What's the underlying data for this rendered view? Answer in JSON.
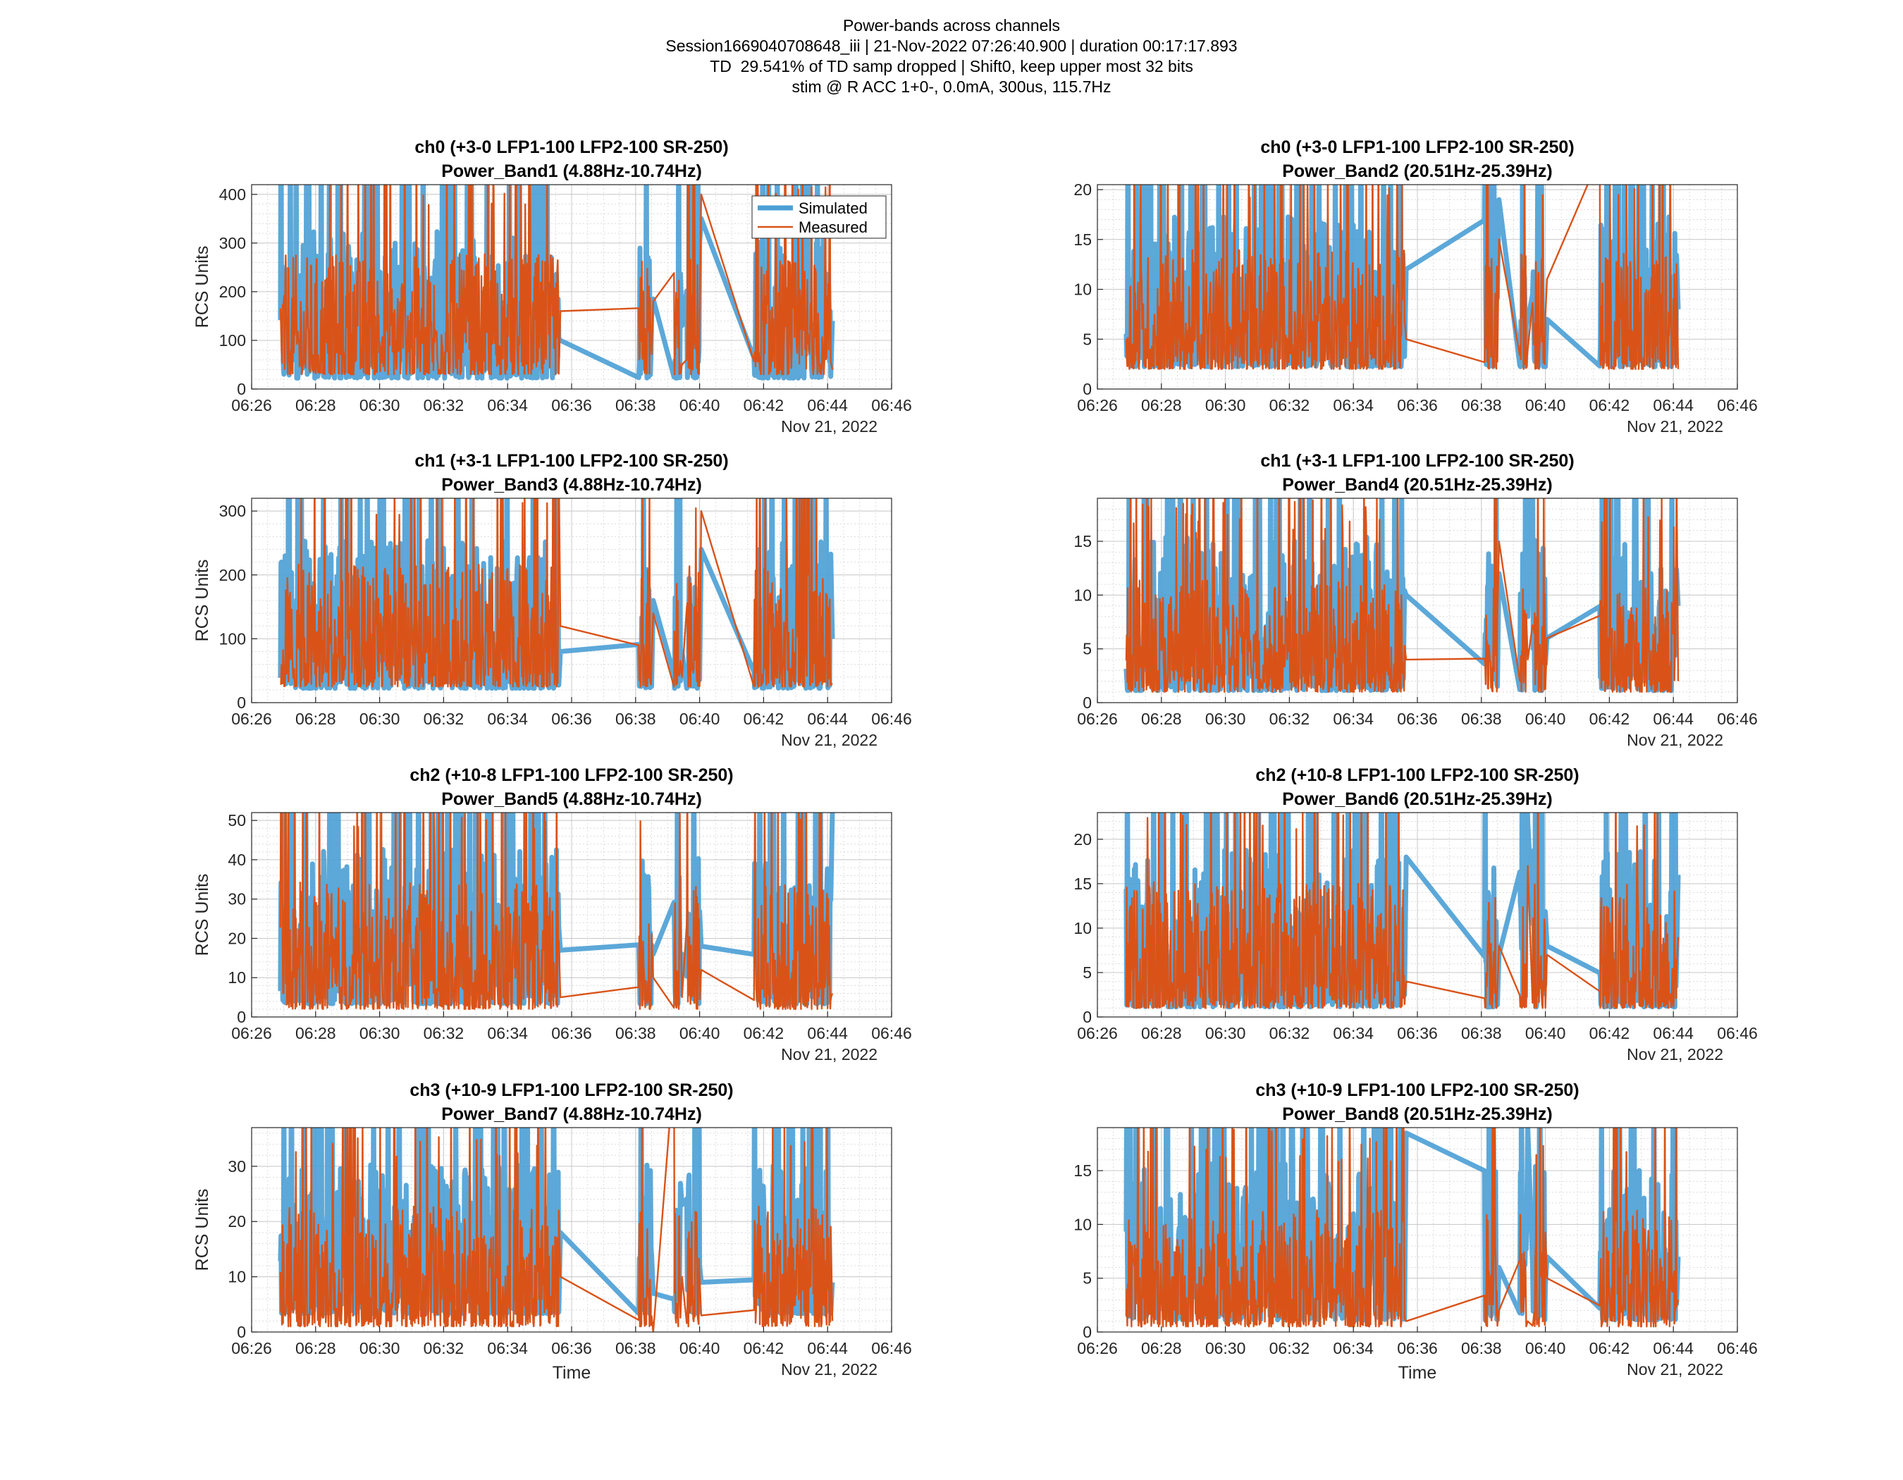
{
  "suptitle": [
    "Power-bands across channels",
    "Session1669040708648_iii | 21-Nov-2022 07:26:40.900 | duration 00:17:17.893",
    "TD  29.541% of TD samp dropped | Shift0, keep upper most 32 bits",
    "stim @ R ACC 1+0-, 0.0mA, 300us, 115.7Hz"
  ],
  "colors": {
    "simulated": "#4a9fd5",
    "measured": "#d95319",
    "grid": "#dcdcdc",
    "axis": "#262626"
  },
  "axes_common": {
    "xticks": [
      "06:26",
      "06:28",
      "06:30",
      "06:32",
      "06:34",
      "06:36",
      "06:38",
      "06:40",
      "06:42",
      "06:44",
      "06:46"
    ],
    "xlim": [
      "06:26",
      "06:46"
    ],
    "date_label": "Nov 21, 2022",
    "ylabel": "RCS Units",
    "xlabel": "Time",
    "legend": [
      "Simulated",
      "Measured"
    ]
  },
  "chart_data": [
    {
      "type": "line",
      "title": [
        "ch0 (+3-0 LFP1-100 LFP2-100 SR-250)",
        "Power_Band1 (4.88Hz-10.74Hz)"
      ],
      "ylim": [
        0,
        420
      ],
      "yticks": [
        0,
        100,
        200,
        300,
        400
      ],
      "series": [
        {
          "name": "Simulated",
          "dense_range": [
            20,
            380
          ],
          "segments": [
            [
              0,
              0
            ],
            [
              9.7,
              100
            ],
            [
              12.3,
              185
            ],
            [
              13.3,
              130
            ],
            [
              14.0,
              350
            ],
            [
              15.8,
              140
            ]
          ]
        },
        {
          "name": "Measured",
          "dense_range": [
            30,
            360
          ],
          "segments": [
            [
              0,
              0
            ],
            [
              9.7,
              160
            ],
            [
              12.3,
              180
            ],
            [
              13.3,
              50
            ],
            [
              14.0,
              400
            ],
            [
              14.9,
              40
            ],
            [
              15.6,
              80
            ]
          ]
        }
      ]
    },
    {
      "type": "line",
      "title": [
        "ch0 (+3-0 LFP1-100 LFP2-100 SR-250)",
        "Power_Band2 (20.51Hz-25.39Hz)"
      ],
      "ylim": [
        0,
        20.5
      ],
      "yticks": [
        0,
        5,
        10,
        15,
        20
      ],
      "series": [
        {
          "name": "Simulated",
          "dense_range": [
            2,
            20
          ],
          "segments": [
            [
              0,
              0
            ],
            [
              9.7,
              12
            ],
            [
              12.3,
              19
            ],
            [
              13.4,
              7
            ],
            [
              14.0,
              7
            ],
            [
              15.8,
              8
            ]
          ]
        },
        {
          "name": "Measured",
          "dense_range": [
            2,
            18
          ],
          "segments": [
            [
              0,
              0
            ],
            [
              9.7,
              5
            ],
            [
              12.3,
              15
            ],
            [
              13.4,
              4
            ],
            [
              14.2,
              11
            ],
            [
              15.0,
              2
            ],
            [
              15.8,
              6
            ]
          ]
        }
      ]
    },
    {
      "type": "line",
      "title": [
        "ch1 (+3-1 LFP1-100 LFP2-100 SR-250)",
        "Power_Band3 (4.88Hz-10.74Hz)"
      ],
      "ylim": [
        0,
        320
      ],
      "yticks": [
        0,
        100,
        200,
        300
      ],
      "series": [
        {
          "name": "Simulated",
          "dense_range": [
            20,
            300
          ],
          "segments": [
            [
              0,
              0
            ],
            [
              9.7,
              80
            ],
            [
              12.3,
              160
            ],
            [
              13.3,
              80
            ],
            [
              14.0,
              240
            ],
            [
              15.8,
              100
            ]
          ]
        },
        {
          "name": "Measured",
          "dense_range": [
            25,
            280
          ],
          "segments": [
            [
              0,
              0
            ],
            [
              9.7,
              120
            ],
            [
              12.3,
              140
            ],
            [
              13.3,
              40
            ],
            [
              14.0,
              300
            ],
            [
              14.9,
              30
            ],
            [
              15.5,
              80
            ]
          ]
        }
      ]
    },
    {
      "type": "line",
      "title": [
        "ch1 (+3-1 LFP1-100 LFP2-100 SR-250)",
        "Power_Band4 (20.51Hz-25.39Hz)"
      ],
      "ylim": [
        0,
        19
      ],
      "yticks": [
        0,
        5,
        10,
        15
      ],
      "series": [
        {
          "name": "Simulated",
          "dense_range": [
            1,
            18
          ],
          "segments": [
            [
              0,
              0
            ],
            [
              9.7,
              10
            ],
            [
              12.3,
              12
            ],
            [
              13.4,
              8
            ],
            [
              14.0,
              6
            ],
            [
              15.8,
              9
            ]
          ]
        },
        {
          "name": "Measured",
          "dense_range": [
            1,
            15
          ],
          "segments": [
            [
              0,
              0
            ],
            [
              9.7,
              4
            ],
            [
              12.1,
              15
            ],
            [
              13.4,
              4
            ],
            [
              14.2,
              6
            ],
            [
              15.0,
              2
            ],
            [
              15.8,
              5
            ]
          ]
        }
      ]
    },
    {
      "type": "line",
      "title": [
        "ch2 (+10-8 LFP1-100 LFP2-100 SR-250)",
        "Power_Band5 (4.88Hz-10.74Hz)"
      ],
      "ylim": [
        0,
        52
      ],
      "yticks": [
        0,
        10,
        20,
        30,
        40,
        50
      ],
      "series": [
        {
          "name": "Simulated",
          "dense_range": [
            3,
            50
          ],
          "segments": [
            [
              0,
              0
            ],
            [
              9.7,
              17
            ],
            [
              12.2,
              16
            ],
            [
              13.3,
              16
            ],
            [
              14.0,
              18
            ],
            [
              15.6,
              52
            ]
          ]
        },
        {
          "name": "Measured",
          "dense_range": [
            2,
            45
          ],
          "segments": [
            [
              0,
              0
            ],
            [
              9.7,
              5
            ],
            [
              12.2,
              10
            ],
            [
              13.3,
              5
            ],
            [
              14.2,
              12
            ],
            [
              15.0,
              6
            ],
            [
              15.6,
              8
            ]
          ]
        }
      ]
    },
    {
      "type": "line",
      "title": [
        "ch2 (+10-8 LFP1-100 LFP2-100 SR-250)",
        "Power_Band6 (20.51Hz-25.39Hz)"
      ],
      "ylim": [
        0,
        23
      ],
      "yticks": [
        0,
        5,
        10,
        15,
        20
      ],
      "series": [
        {
          "name": "Simulated",
          "dense_range": [
            1,
            22
          ],
          "segments": [
            [
              0,
              0
            ],
            [
              9.7,
              18
            ],
            [
              12.3,
              7
            ],
            [
              13.4,
              22
            ],
            [
              14.0,
              8
            ],
            [
              15.8,
              16
            ]
          ]
        },
        {
          "name": "Measured",
          "dense_range": [
            1,
            20
          ],
          "segments": [
            [
              0,
              0
            ],
            [
              9.7,
              4
            ],
            [
              12.3,
              8
            ],
            [
              13.4,
              17
            ],
            [
              14.2,
              7
            ],
            [
              15.0,
              9
            ],
            [
              15.8,
              0
            ]
          ]
        }
      ]
    },
    {
      "type": "line",
      "title": [
        "ch3 (+10-9 LFP1-100 LFP2-100 SR-250)",
        "Power_Band7 (4.88Hz-10.74Hz)"
      ],
      "ylim": [
        0,
        37
      ],
      "yticks": [
        0,
        10,
        20,
        30
      ],
      "series": [
        {
          "name": "Simulated",
          "dense_range": [
            3,
            35
          ],
          "segments": [
            [
              0,
              0
            ],
            [
              9.7,
              18
            ],
            [
              12.3,
              7
            ],
            [
              13.3,
              23
            ],
            [
              14.0,
              9
            ],
            [
              15.8,
              9
            ]
          ]
        },
        {
          "name": "Measured",
          "dense_range": [
            1,
            30
          ],
          "segments": [
            [
              0,
              0
            ],
            [
              9.7,
              10
            ],
            [
              12.3,
              0
            ],
            [
              13.3,
              10
            ],
            [
              14.2,
              3
            ],
            [
              15.0,
              2
            ],
            [
              15.8,
              10
            ]
          ]
        }
      ]
    },
    {
      "type": "line",
      "title": [
        "ch3 (+10-9 LFP1-100 LFP2-100 SR-250)",
        "Power_Band8 (20.51Hz-25.39Hz)"
      ],
      "ylim": [
        0,
        19
      ],
      "yticks": [
        0,
        5,
        10,
        15
      ],
      "series": [
        {
          "name": "Simulated",
          "dense_range": [
            1,
            18.5
          ],
          "segments": [
            [
              0,
              0
            ],
            [
              9.7,
              18.5
            ],
            [
              12.3,
              6
            ],
            [
              13.4,
              19
            ],
            [
              14.0,
              7
            ],
            [
              15.8,
              7
            ]
          ]
        },
        {
          "name": "Measured",
          "dense_range": [
            0.5,
            15
          ],
          "segments": [
            [
              0,
              0
            ],
            [
              9.7,
              1
            ],
            [
              12.1,
              2
            ],
            [
              13.4,
              1
            ],
            [
              14.2,
              5
            ],
            [
              15.0,
              3
            ],
            [
              15.8,
              2
            ]
          ]
        }
      ]
    }
  ]
}
